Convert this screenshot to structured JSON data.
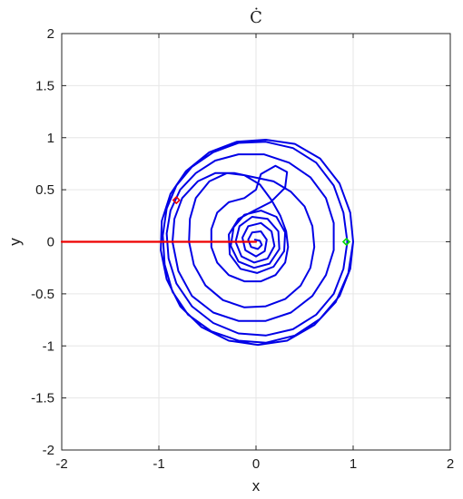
{
  "chart_data": {
    "type": "line",
    "title": "Ċ",
    "xlabel": "x",
    "ylabel": "y",
    "xlim": [
      -2,
      2
    ],
    "ylim": [
      -2,
      2
    ],
    "x_ticks": [
      -2,
      -1,
      0,
      1,
      2
    ],
    "y_ticks": [
      -2,
      -1.5,
      -1,
      -0.5,
      0,
      0.5,
      1,
      1.5,
      2
    ],
    "x_tick_labels": [
      "-2",
      "-1",
      "0",
      "1",
      "2"
    ],
    "y_tick_labels": [
      "-2",
      "-1.5",
      "-1",
      "-0.5",
      "0",
      "0.5",
      "1",
      "1.5",
      "2"
    ],
    "grid": true,
    "colors": {
      "spiral": "#0000e6",
      "segment": "#ee0000",
      "start_marker": "#ee0000",
      "end_marker": "#00dd00"
    },
    "series": [
      {
        "kind": "spiral",
        "color": "#0000e6",
        "points": [
          [
            -0.01,
            0.02
          ],
          [
            0.04,
            0.01
          ],
          [
            0.06,
            -0.03
          ],
          [
            0.02,
            -0.07
          ],
          [
            -0.05,
            -0.05
          ],
          [
            -0.08,
            0.02
          ],
          [
            -0.04,
            0.09
          ],
          [
            0.05,
            0.1
          ],
          [
            0.11,
            0.02
          ],
          [
            0.09,
            -0.09
          ],
          [
            0.0,
            -0.14
          ],
          [
            -0.11,
            -0.08
          ],
          [
            -0.14,
            0.04
          ],
          [
            -0.08,
            0.15
          ],
          [
            0.05,
            0.18
          ],
          [
            0.16,
            0.1
          ],
          [
            0.19,
            -0.04
          ],
          [
            0.12,
            -0.16
          ],
          [
            -0.02,
            -0.2
          ],
          [
            -0.15,
            -0.14
          ],
          [
            -0.21,
            0.0
          ],
          [
            -0.17,
            0.15
          ],
          [
            -0.04,
            0.24
          ],
          [
            0.12,
            0.22
          ],
          [
            0.23,
            0.1
          ],
          [
            0.24,
            -0.07
          ],
          [
            0.14,
            -0.21
          ],
          [
            -0.02,
            -0.25
          ],
          [
            -0.18,
            -0.19
          ],
          [
            -0.26,
            -0.04
          ],
          [
            -0.23,
            0.14
          ],
          [
            -0.12,
            0.26
          ],
          [
            0.05,
            0.3
          ],
          [
            0.21,
            0.24
          ],
          [
            0.3,
            0.09
          ],
          [
            0.29,
            -0.09
          ],
          [
            0.18,
            -0.24
          ],
          [
            0.01,
            -0.3
          ],
          [
            -0.16,
            -0.26
          ],
          [
            -0.27,
            -0.12
          ],
          [
            -0.28,
            0.07
          ],
          [
            -0.18,
            0.22
          ],
          [
            -0.02,
            0.3
          ],
          [
            0.15,
            0.38
          ],
          [
            0.3,
            0.52
          ],
          [
            0.32,
            0.67
          ],
          [
            0.2,
            0.73
          ],
          [
            0.05,
            0.65
          ],
          [
            0.0,
            0.5
          ],
          [
            -0.12,
            0.42
          ],
          [
            -0.28,
            0.38
          ],
          [
            -0.4,
            0.28
          ],
          [
            -0.46,
            0.12
          ],
          [
            -0.46,
            -0.05
          ],
          [
            -0.4,
            -0.2
          ],
          [
            -0.28,
            -0.32
          ],
          [
            -0.12,
            -0.38
          ],
          [
            0.05,
            -0.38
          ],
          [
            0.2,
            -0.32
          ],
          [
            0.3,
            -0.2
          ],
          [
            0.33,
            -0.05
          ],
          [
            0.31,
            0.1
          ],
          [
            0.25,
            0.25
          ],
          [
            0.16,
            0.4
          ],
          [
            0.04,
            0.55
          ],
          [
            -0.12,
            0.64
          ],
          [
            -0.3,
            0.66
          ],
          [
            -0.48,
            0.58
          ],
          [
            -0.62,
            0.42
          ],
          [
            -0.68,
            0.22
          ],
          [
            -0.69,
            0.0
          ],
          [
            -0.64,
            -0.22
          ],
          [
            -0.52,
            -0.42
          ],
          [
            -0.34,
            -0.56
          ],
          [
            -0.12,
            -0.63
          ],
          [
            0.1,
            -0.62
          ],
          [
            0.3,
            -0.55
          ],
          [
            0.46,
            -0.42
          ],
          [
            0.56,
            -0.25
          ],
          [
            0.6,
            -0.05
          ],
          [
            0.58,
            0.15
          ],
          [
            0.5,
            0.34
          ],
          [
            0.36,
            0.48
          ],
          [
            0.18,
            0.58
          ],
          [
            -0.02,
            0.62
          ],
          [
            -0.22,
            0.66
          ],
          [
            -0.42,
            0.66
          ],
          [
            -0.6,
            0.58
          ],
          [
            -0.76,
            0.42
          ],
          [
            -0.84,
            0.22
          ],
          [
            -0.86,
            0.0
          ],
          [
            -0.8,
            -0.28
          ],
          [
            -0.66,
            -0.52
          ],
          [
            -0.44,
            -0.68
          ],
          [
            -0.18,
            -0.76
          ],
          [
            0.1,
            -0.76
          ],
          [
            0.36,
            -0.68
          ],
          [
            0.58,
            -0.52
          ],
          [
            0.72,
            -0.32
          ],
          [
            0.8,
            -0.08
          ],
          [
            0.8,
            0.18
          ],
          [
            0.72,
            0.42
          ],
          [
            0.56,
            0.62
          ],
          [
            0.34,
            0.76
          ],
          [
            0.08,
            0.84
          ],
          [
            -0.18,
            0.84
          ],
          [
            -0.42,
            0.78
          ],
          [
            -0.62,
            0.66
          ],
          [
            -0.78,
            0.5
          ],
          [
            -0.88,
            0.3
          ],
          [
            -0.92,
            0.08
          ],
          [
            -0.9,
            -0.16
          ],
          [
            -0.82,
            -0.4
          ],
          [
            -0.66,
            -0.62
          ],
          [
            -0.44,
            -0.78
          ],
          [
            -0.18,
            -0.88
          ],
          [
            0.1,
            -0.9
          ],
          [
            0.38,
            -0.84
          ],
          [
            0.62,
            -0.7
          ],
          [
            0.8,
            -0.5
          ],
          [
            0.9,
            -0.26
          ],
          [
            0.94,
            0.0
          ],
          [
            0.9,
            0.28
          ],
          [
            0.8,
            0.54
          ],
          [
            0.62,
            0.76
          ],
          [
            0.38,
            0.9
          ],
          [
            0.1,
            0.96
          ],
          [
            -0.18,
            0.95
          ],
          [
            -0.44,
            0.86
          ],
          [
            -0.66,
            0.72
          ],
          [
            -0.82,
            0.54
          ],
          [
            -0.92,
            0.32
          ],
          [
            -0.96,
            0.06
          ],
          [
            -0.94,
            -0.22
          ],
          [
            -0.86,
            -0.48
          ],
          [
            -0.7,
            -0.7
          ],
          [
            -0.46,
            -0.86
          ],
          [
            -0.18,
            -0.95
          ],
          [
            0.1,
            -0.97
          ],
          [
            0.4,
            -0.9
          ],
          [
            0.66,
            -0.74
          ],
          [
            0.86,
            -0.52
          ],
          [
            0.97,
            -0.26
          ],
          [
            1.0,
            0.0
          ],
          [
            0.97,
            0.28
          ],
          [
            0.86,
            0.56
          ],
          [
            0.66,
            0.8
          ],
          [
            0.4,
            0.94
          ],
          [
            0.1,
            0.98
          ],
          [
            -0.2,
            0.96
          ],
          [
            -0.48,
            0.86
          ],
          [
            -0.72,
            0.68
          ],
          [
            -0.88,
            0.46
          ],
          [
            -0.97,
            0.2
          ],
          [
            -0.98,
            -0.08
          ],
          [
            -0.92,
            -0.36
          ],
          [
            -0.78,
            -0.62
          ],
          [
            -0.56,
            -0.82
          ],
          [
            -0.28,
            -0.95
          ],
          [
            0.02,
            -0.99
          ],
          [
            0.32,
            -0.95
          ],
          [
            0.6,
            -0.8
          ],
          [
            0.82,
            -0.58
          ],
          [
            0.95,
            -0.3
          ],
          [
            1.0,
            0.0
          ]
        ]
      },
      {
        "kind": "segment",
        "color": "#ee0000",
        "points": [
          [
            -2,
            0
          ],
          [
            0,
            0
          ]
        ]
      },
      {
        "kind": "marker",
        "role": "start",
        "color": "#ee0000",
        "points": [
          [
            -0.82,
            0.4
          ]
        ]
      },
      {
        "kind": "marker",
        "role": "end",
        "color": "#00dd00",
        "points": [
          [
            0.93,
            0.0
          ]
        ]
      }
    ]
  }
}
